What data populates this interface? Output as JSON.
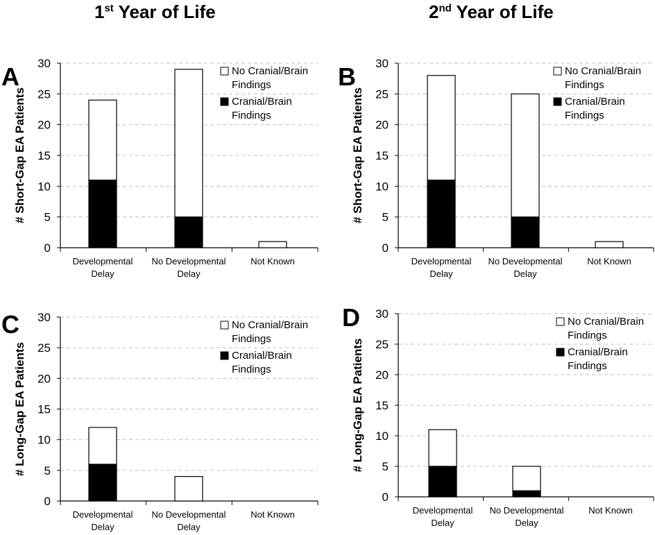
{
  "titles": {
    "col1": {
      "num": "1",
      "sup": "st",
      "rest": " Year of Life"
    },
    "col2": {
      "num": "2",
      "sup": "nd",
      "rest": " Year of Life"
    }
  },
  "colors": {
    "with_findings": "#000000",
    "no_findings": "#ffffff",
    "grid": "#bfbfbf",
    "axis": "#000000"
  },
  "chart_data": [
    {
      "panel": "A",
      "type": "bar",
      "stacked": true,
      "ylabel": "# Short-Gap EA Patients",
      "ylim": [
        0,
        30
      ],
      "yticks": [
        0,
        5,
        10,
        15,
        20,
        25,
        30
      ],
      "categories": [
        [
          "Developmental",
          "Delay"
        ],
        [
          "No Developmental",
          "Delay"
        ],
        [
          "Not Known"
        ]
      ],
      "series": [
        {
          "name": "Cranial/Brain Findings",
          "legend": [
            "Cranial/Brain",
            "Findings"
          ],
          "color": "#000000",
          "values": [
            11,
            5,
            0
          ]
        },
        {
          "name": "No Cranial/Brain Findings",
          "legend": [
            "No Cranial/Brain",
            "Findings"
          ],
          "color": "#ffffff",
          "values": [
            13,
            24,
            1
          ]
        }
      ],
      "legend_position": "top-right"
    },
    {
      "panel": "B",
      "type": "bar",
      "stacked": true,
      "ylabel": "# Short-Gap EA Patients",
      "ylim": [
        0,
        30
      ],
      "yticks": [
        0,
        5,
        10,
        15,
        20,
        25,
        30
      ],
      "categories": [
        [
          "Developmental",
          "Delay"
        ],
        [
          "No Developmental",
          "Delay"
        ],
        [
          "Not Known"
        ]
      ],
      "series": [
        {
          "name": "Cranial/Brain Findings",
          "legend": [
            "Cranial/Brain",
            "Findings"
          ],
          "color": "#000000",
          "values": [
            11,
            5,
            0
          ]
        },
        {
          "name": "No Cranial/Brain Findings",
          "legend": [
            "No Cranial/Brain",
            "Findings"
          ],
          "color": "#ffffff",
          "values": [
            17,
            20,
            1
          ]
        }
      ],
      "legend_position": "top-right"
    },
    {
      "panel": "C",
      "type": "bar",
      "stacked": true,
      "ylabel": "# Long-Gap EA Patients",
      "ylim": [
        0,
        30
      ],
      "yticks": [
        0,
        5,
        10,
        15,
        20,
        25,
        30
      ],
      "categories": [
        [
          "Developmental",
          "Delay"
        ],
        [
          "No Developmental",
          "Delay"
        ],
        [
          "Not Known"
        ]
      ],
      "series": [
        {
          "name": "Cranial/Brain Findings",
          "legend": [
            "Cranial/Brain",
            "Findings"
          ],
          "color": "#000000",
          "values": [
            6,
            0,
            0
          ]
        },
        {
          "name": "No Cranial/Brain Findings",
          "legend": [
            "No Cranial/Brain",
            "Findings"
          ],
          "color": "#ffffff",
          "values": [
            6,
            4,
            0
          ]
        }
      ],
      "legend_position": "top-right"
    },
    {
      "panel": "D",
      "type": "bar",
      "stacked": true,
      "ylabel": "# Long-Gap EA Patients",
      "ylim": [
        0,
        30
      ],
      "yticks": [
        0,
        5,
        10,
        15,
        20,
        25,
        30
      ],
      "categories": [
        [
          "Developmental",
          "Delay"
        ],
        [
          "No Developmental",
          "Delay"
        ],
        [
          "Not Known"
        ]
      ],
      "series": [
        {
          "name": "Cranial/Brain Findings",
          "legend": [
            "Cranial/Brain",
            "Findings"
          ],
          "color": "#000000",
          "values": [
            5,
            1,
            0
          ]
        },
        {
          "name": "No Cranial/Brain Findings",
          "legend": [
            "No Cranial/Brain",
            "Findings"
          ],
          "color": "#ffffff",
          "values": [
            6,
            4,
            0
          ]
        }
      ],
      "legend_position": "top-right"
    }
  ]
}
